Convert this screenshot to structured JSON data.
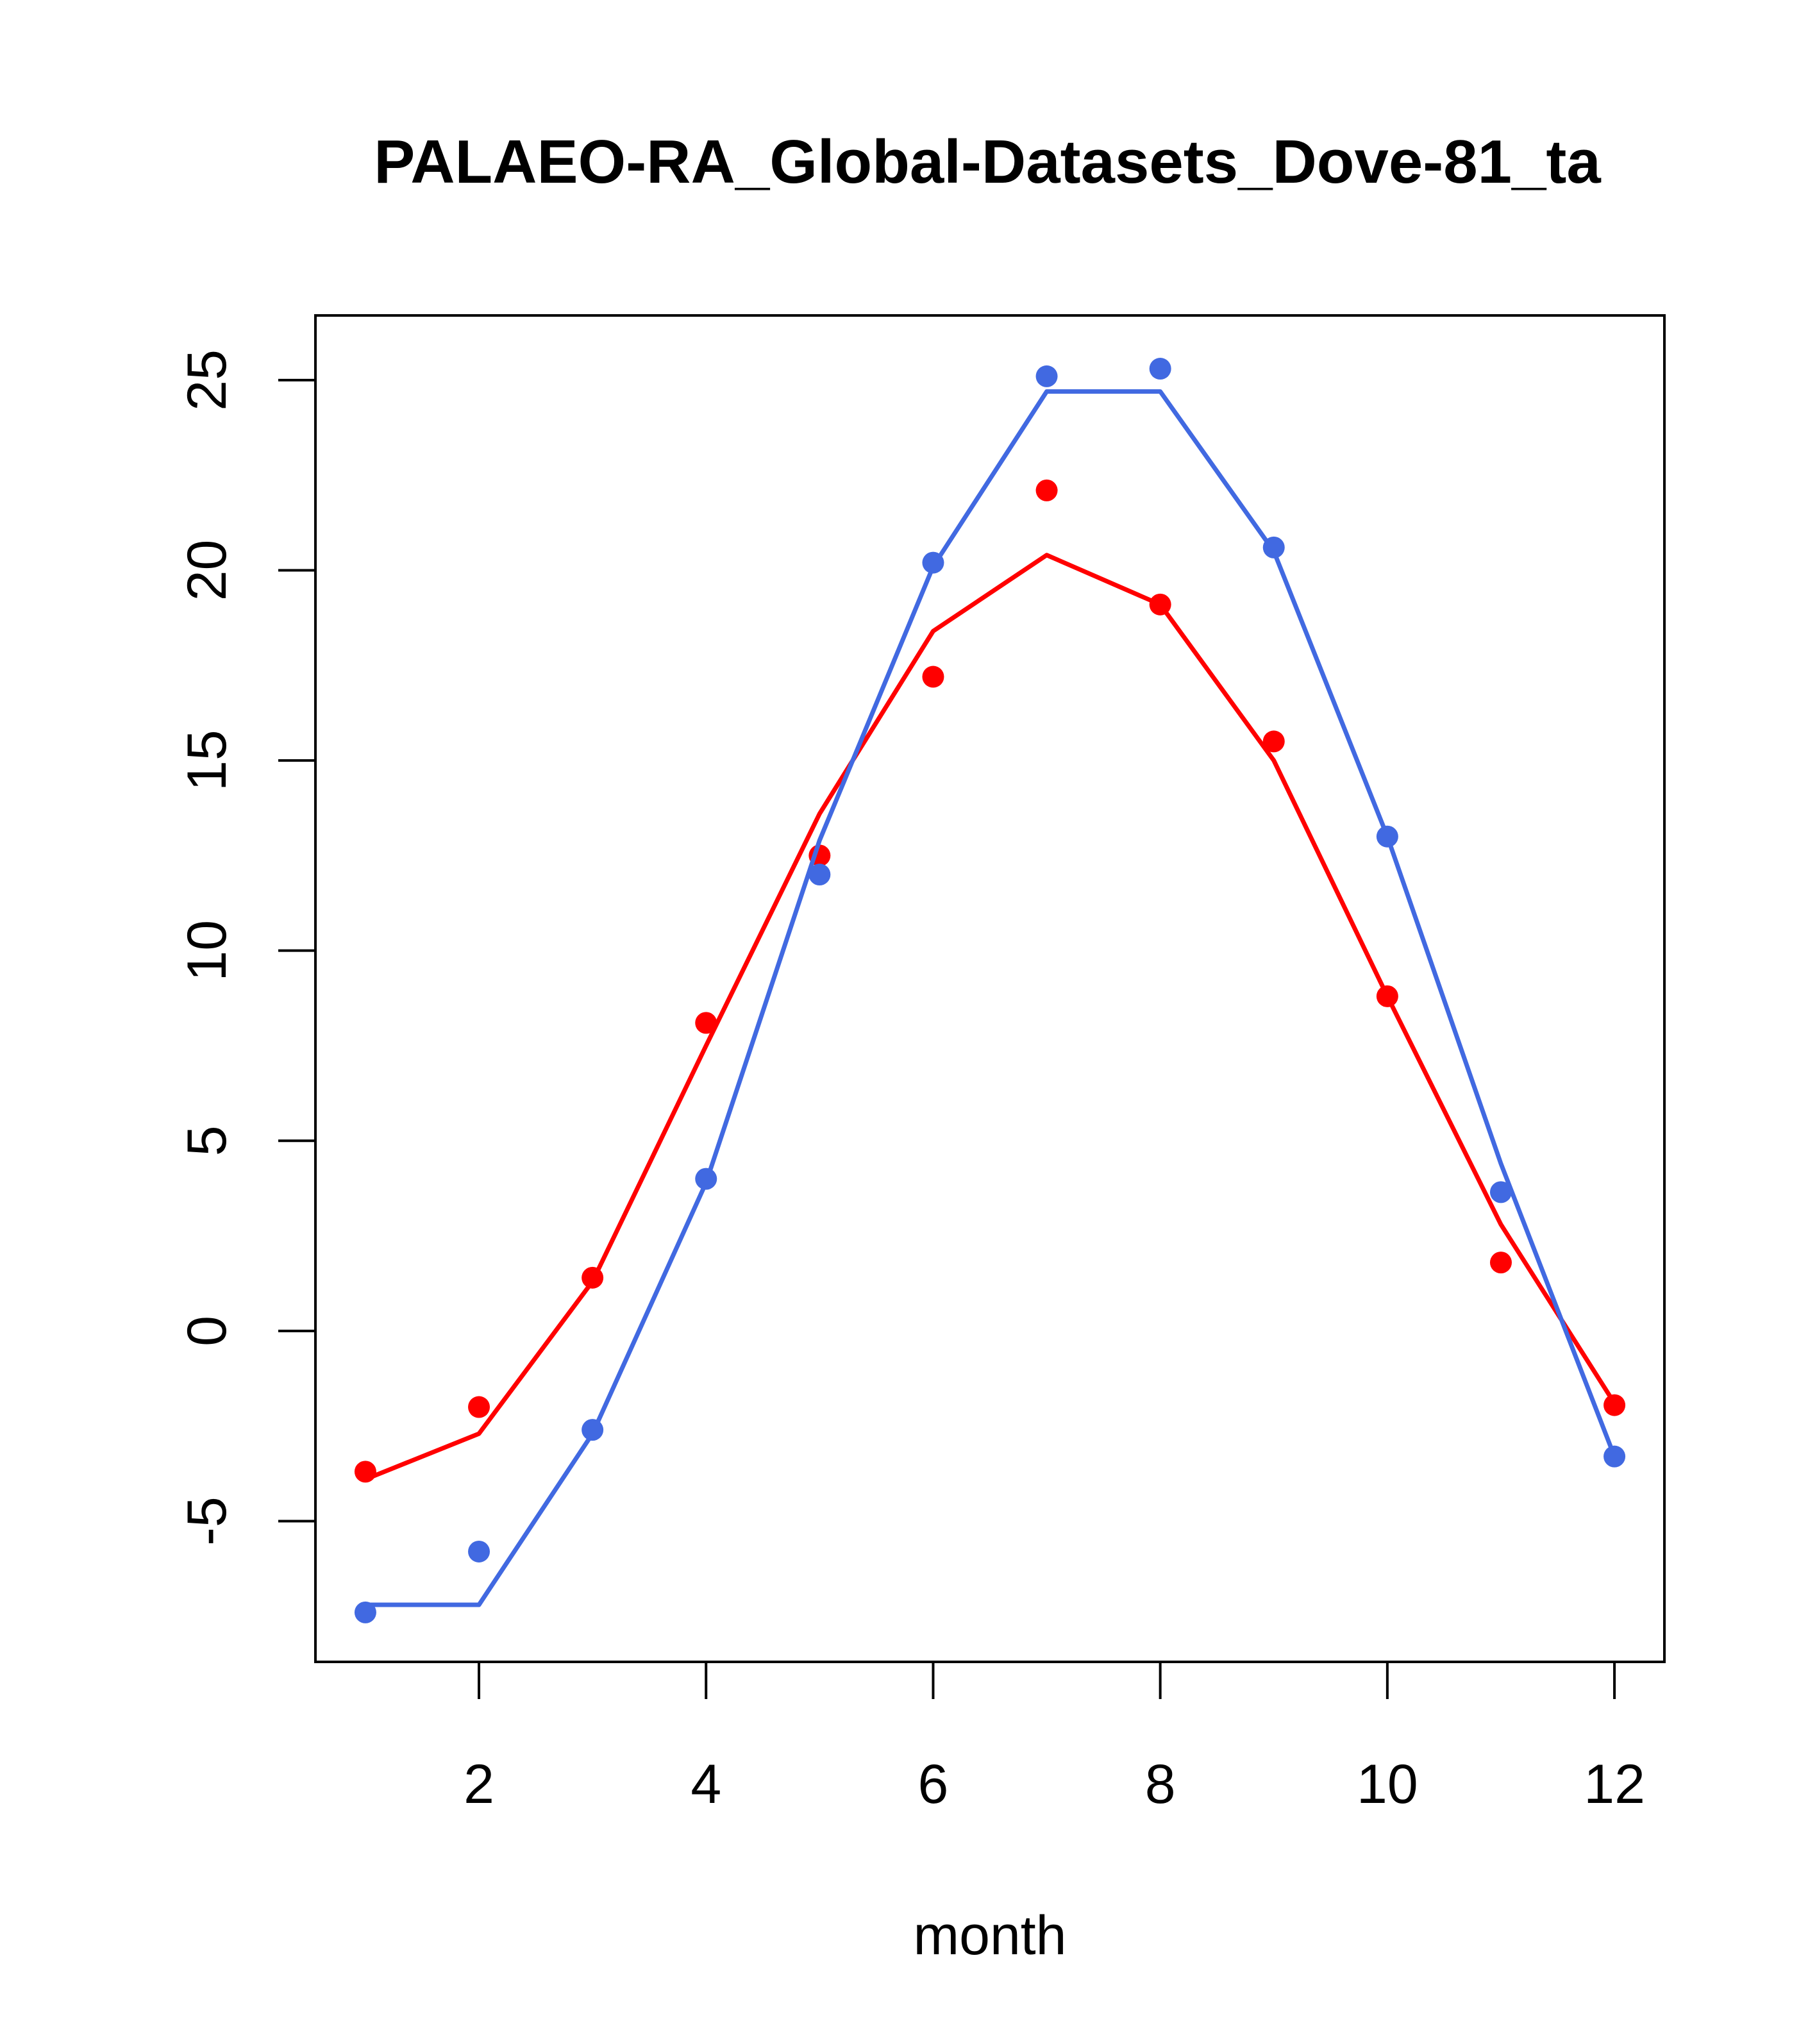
{
  "chart_data": {
    "type": "line",
    "title": "PALAEO-RA_Global-Datasets_Dove-81_ta",
    "xlabel": "month",
    "ylabel": "",
    "x": [
      1,
      2,
      3,
      4,
      5,
      6,
      7,
      8,
      9,
      10,
      11,
      12
    ],
    "xlim": [
      0.56,
      12.44
    ],
    "ylim": [
      -8.7,
      26.7
    ],
    "x_ticks": [
      2,
      4,
      6,
      8,
      10,
      12
    ],
    "y_ticks": [
      -5,
      0,
      5,
      10,
      15,
      20,
      25
    ],
    "grid": false,
    "series": [
      {
        "color": "#ff0000",
        "line": [
          -3.9,
          -2.7,
          1.3,
          7.5,
          13.6,
          18.4,
          20.4,
          19.1,
          15.0,
          8.8,
          2.8,
          -1.9
        ],
        "points": [
          -3.7,
          -2.0,
          1.4,
          8.1,
          12.5,
          17.2,
          22.1,
          19.1,
          15.5,
          8.8,
          1.8,
          -1.95
        ]
      },
      {
        "color": "#4169e1",
        "line": [
          -7.2,
          -7.2,
          -2.7,
          3.9,
          12.9,
          20.1,
          24.7,
          24.7,
          20.5,
          13.0,
          4.4,
          -3.3
        ],
        "points": [
          -7.4,
          -5.8,
          -2.6,
          4.0,
          12.0,
          20.2,
          25.1,
          25.3,
          20.6,
          13.0,
          3.65,
          -3.3
        ]
      }
    ]
  }
}
